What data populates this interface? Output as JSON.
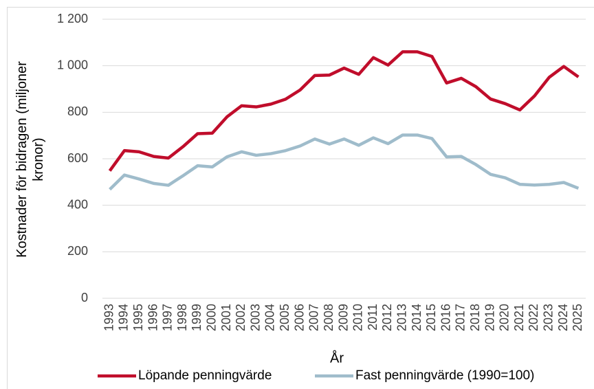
{
  "chart_data": {
    "type": "line",
    "xlabel": "År",
    "ylabel": "Kostnader för bidragen (miljoner kronor)",
    "categories": [
      "1993",
      "1994",
      "1995",
      "1996",
      "1997",
      "1998",
      "1999",
      "2000",
      "2001",
      "2002",
      "2003",
      "2004",
      "2005",
      "2006",
      "2007",
      "2008",
      "2009",
      "2010",
      "2011",
      "2012",
      "2013",
      "2014",
      "2015",
      "2016",
      "2017",
      "2018",
      "2019",
      "2020",
      "2021",
      "2022",
      "2023",
      "2024",
      "2025"
    ],
    "series": [
      {
        "name": "Löpande penningvärde",
        "color": "#c00d2b",
        "values": [
          548,
          635,
          630,
          610,
          603,
          652,
          708,
          710,
          780,
          828,
          823,
          835,
          856,
          896,
          958,
          960,
          990,
          963,
          1035,
          1003,
          1060,
          1060,
          1040,
          926,
          946,
          910,
          857,
          837,
          810,
          870,
          950,
          997,
          952
        ]
      },
      {
        "name": "Fast penningvärde (1990=100)",
        "color": "#9fbccb",
        "values": [
          468,
          530,
          513,
          494,
          486,
          527,
          570,
          565,
          608,
          630,
          615,
          622,
          635,
          655,
          685,
          663,
          685,
          658,
          690,
          665,
          702,
          702,
          687,
          608,
          610,
          575,
          533,
          518,
          490,
          487,
          490,
          498,
          473
        ]
      }
    ],
    "ylim": [
      0,
      1200
    ],
    "yticks": [
      0,
      200,
      400,
      600,
      800,
      {
        "value": 1000,
        "label": "1 000"
      },
      {
        "value": 1200,
        "label": "1 200"
      }
    ],
    "grid": true,
    "legend": "bottom"
  }
}
